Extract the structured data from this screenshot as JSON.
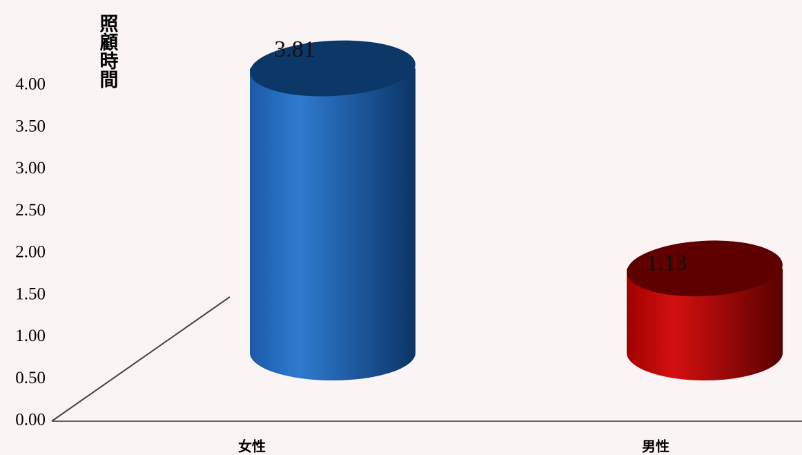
{
  "chart_data": {
    "type": "cylinder",
    "y_label": "照顧時間",
    "categories": [
      "女性",
      "男性"
    ],
    "values": [
      3.81,
      1.13
    ],
    "colors": [
      "#1f63b4",
      "#b30000"
    ],
    "ylim": [
      0,
      5
    ],
    "yticks": [
      {
        "value": 0,
        "label": "0.00"
      },
      {
        "value": 0.5,
        "label": "0.50"
      },
      {
        "value": 1,
        "label": "1.00"
      },
      {
        "value": 1.5,
        "label": "1.50"
      },
      {
        "value": 2,
        "label": "2.00"
      },
      {
        "value": 2.5,
        "label": "2.50"
      },
      {
        "value": 3,
        "label": "3.00"
      },
      {
        "value": 3.5,
        "label": "3.50"
      },
      {
        "value": 4,
        "label": "4.00"
      }
    ]
  }
}
